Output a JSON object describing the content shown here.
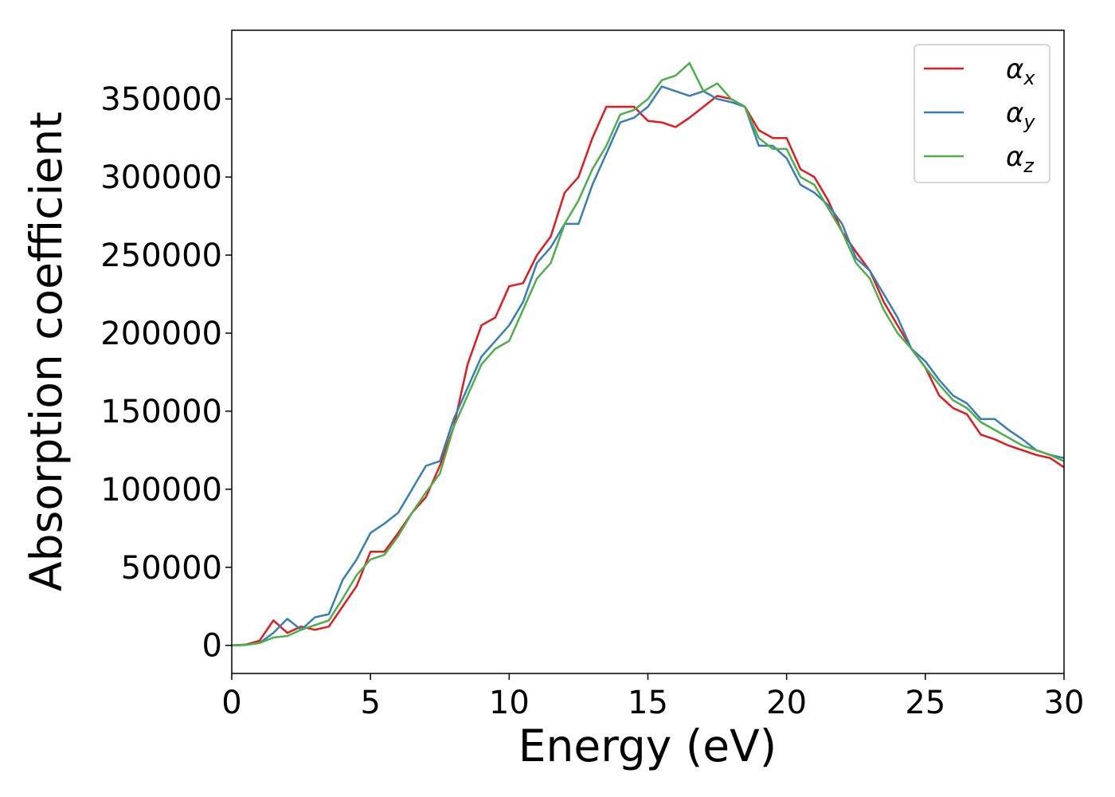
{
  "chart_data": {
    "type": "line",
    "xlabel": "Energy (eV)",
    "ylabel": "Absorption coefficient",
    "x": [
      0,
      0.5,
      1,
      1.5,
      2,
      2.5,
      3,
      3.5,
      4,
      4.5,
      5,
      5.5,
      6,
      6.5,
      7,
      7.5,
      8,
      8.5,
      9,
      9.5,
      10,
      10.5,
      11,
      11.5,
      12,
      12.5,
      13,
      13.5,
      14,
      14.5,
      15,
      15.5,
      16,
      16.5,
      17,
      17.5,
      18,
      18.5,
      19,
      19.5,
      20,
      20.5,
      21,
      21.5,
      22,
      22.5,
      23,
      23.5,
      24,
      24.5,
      25,
      25.5,
      26,
      26.5,
      27,
      27.5,
      28,
      28.5,
      29,
      29.5,
      30
    ],
    "series": [
      {
        "name": "αx",
        "color": "#e41a1c",
        "values": [
          0,
          500,
          3000,
          16000,
          8000,
          12000,
          10000,
          12000,
          25000,
          38000,
          60000,
          60000,
          72000,
          85000,
          95000,
          115000,
          140000,
          180000,
          205000,
          210000,
          230000,
          232000,
          250000,
          262000,
          290000,
          300000,
          325000,
          345000,
          345000,
          345000,
          336000,
          335000,
          332000,
          338000,
          345000,
          352000,
          350000,
          345000,
          330000,
          325000,
          325000,
          305000,
          300000,
          285000,
          265000,
          252000,
          240000,
          220000,
          205000,
          190000,
          178000,
          160000,
          152000,
          148000,
          135000,
          132000,
          128000,
          125000,
          122000,
          120000,
          114000
        ]
      },
      {
        "name": "αy",
        "color": "#377eb8",
        "values": [
          0,
          300,
          1500,
          8000,
          17000,
          10000,
          18000,
          20000,
          42000,
          55000,
          72000,
          78000,
          85000,
          100000,
          115000,
          118000,
          145000,
          165000,
          185000,
          195000,
          205000,
          220000,
          245000,
          255000,
          270000,
          270000,
          295000,
          315000,
          335000,
          338000,
          345000,
          358000,
          355000,
          352000,
          355000,
          350000,
          348000,
          345000,
          320000,
          320000,
          312000,
          295000,
          290000,
          282000,
          270000,
          248000,
          240000,
          225000,
          210000,
          190000,
          182000,
          170000,
          160000,
          155000,
          145000,
          145000,
          138000,
          132000,
          125000,
          122000,
          120000
        ]
      },
      {
        "name": "αz",
        "color": "#4daf4a",
        "values": [
          0,
          300,
          1500,
          5000,
          6000,
          10000,
          13000,
          16000,
          30000,
          45000,
          55000,
          58000,
          70000,
          85000,
          98000,
          110000,
          140000,
          160000,
          180000,
          190000,
          195000,
          215000,
          235000,
          245000,
          270000,
          285000,
          305000,
          320000,
          340000,
          343000,
          350000,
          362000,
          365000,
          373000,
          355000,
          360000,
          350000,
          345000,
          325000,
          318000,
          318000,
          300000,
          295000,
          280000,
          265000,
          245000,
          235000,
          215000,
          200000,
          190000,
          178000,
          167000,
          157000,
          152000,
          143000,
          138000,
          133000,
          128000,
          125000,
          122000,
          118000
        ]
      }
    ],
    "xlim": [
      0,
      30
    ],
    "xticks": [
      0,
      5,
      10,
      15,
      20,
      25,
      30
    ],
    "ylim": [
      -18000,
      394000
    ],
    "yticks": [
      0,
      50000,
      100000,
      150000,
      200000,
      250000,
      300000,
      350000
    ],
    "legend": "upper right",
    "grid": false
  }
}
